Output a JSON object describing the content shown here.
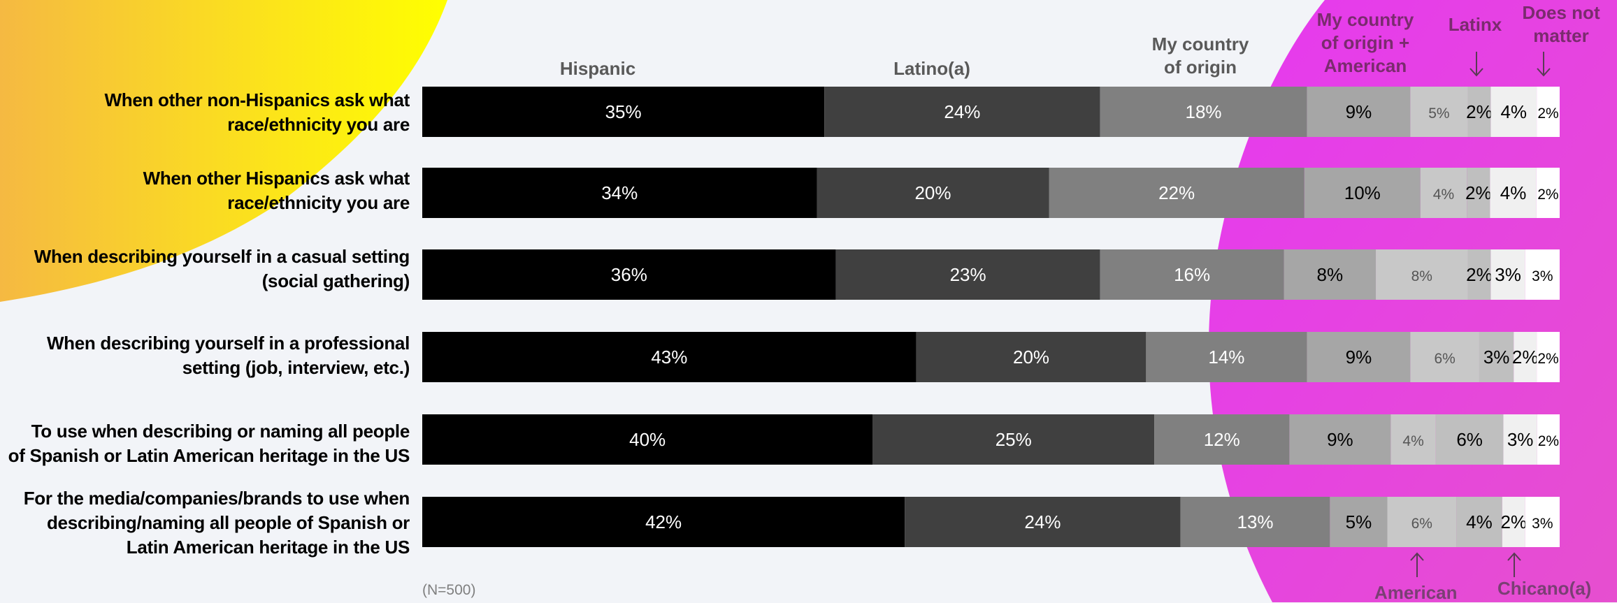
{
  "chart_data": {
    "type": "bar",
    "stacked": true,
    "orientation": "horizontal",
    "categories": [
      [
        "When other non-Hispanics ask what",
        "race/ethnicity you are"
      ],
      [
        "When other Hispanics ask what",
        "race/ethnicity you are"
      ],
      [
        "When describing yourself in a casual setting",
        "(social gathering)"
      ],
      [
        "When describing yourself in a professional",
        "setting (job, interview, etc.)"
      ],
      [
        "To use when describing or naming all people",
        "of Spanish or Latin American heritage in the US"
      ],
      [
        "For the media/companies/brands to use when",
        "describing/naming all people of Spanish or",
        "Latin American heritage in the US"
      ]
    ],
    "series": [
      {
        "name": "Hispanic",
        "color": "#000000",
        "label_color": "#ffffff",
        "values": [
          35,
          34,
          36,
          43,
          40,
          42
        ]
      },
      {
        "name": "Latino(a)",
        "color": "#404040",
        "label_color": "#ffffff",
        "values": [
          24,
          20,
          23,
          20,
          25,
          24
        ]
      },
      {
        "name": "My country of origin",
        "color": "#808080",
        "label_color": "#ffffff",
        "values": [
          18,
          22,
          16,
          14,
          12,
          13
        ]
      },
      {
        "name": "My country of origin + American",
        "color": "#a6a6a6",
        "label_color": "#000000",
        "values": [
          9,
          10,
          8,
          9,
          9,
          5
        ]
      },
      {
        "name": "American",
        "color": "#c8c8c8",
        "label_color": "#555555",
        "values": [
          5,
          4,
          8,
          6,
          4,
          6
        ]
      },
      {
        "name": "Latinx",
        "color": "#bfbfbf",
        "label_color": "#000000",
        "values": [
          2,
          2,
          2,
          3,
          6,
          4
        ]
      },
      {
        "name": "Chicano(a)",
        "color": "#f0f0f0",
        "label_color": "#000000",
        "values": [
          4,
          4,
          3,
          2,
          3,
          2
        ]
      },
      {
        "name": "Does not matter",
        "color": "#ffffff",
        "label_color": "#000000",
        "values": [
          2,
          2,
          3,
          2,
          2,
          3
        ]
      }
    ],
    "value_suffix": "%",
    "headers": {
      "hispanic": [
        "Hispanic"
      ],
      "latino": [
        "Latino(a)"
      ],
      "country": [
        "My country",
        "of origin"
      ],
      "country_american": [
        "My country",
        "of origin +",
        "American"
      ],
      "latinx": [
        "Latinx"
      ],
      "does_not_matter": [
        "Does not",
        "matter"
      ],
      "american": "American",
      "chicano": "Chicano(a)"
    },
    "note": "(N=500)",
    "colors": {
      "yellow": "#ffff00",
      "orange": "#f7b84a",
      "magenta": "#e02fe6"
    }
  }
}
